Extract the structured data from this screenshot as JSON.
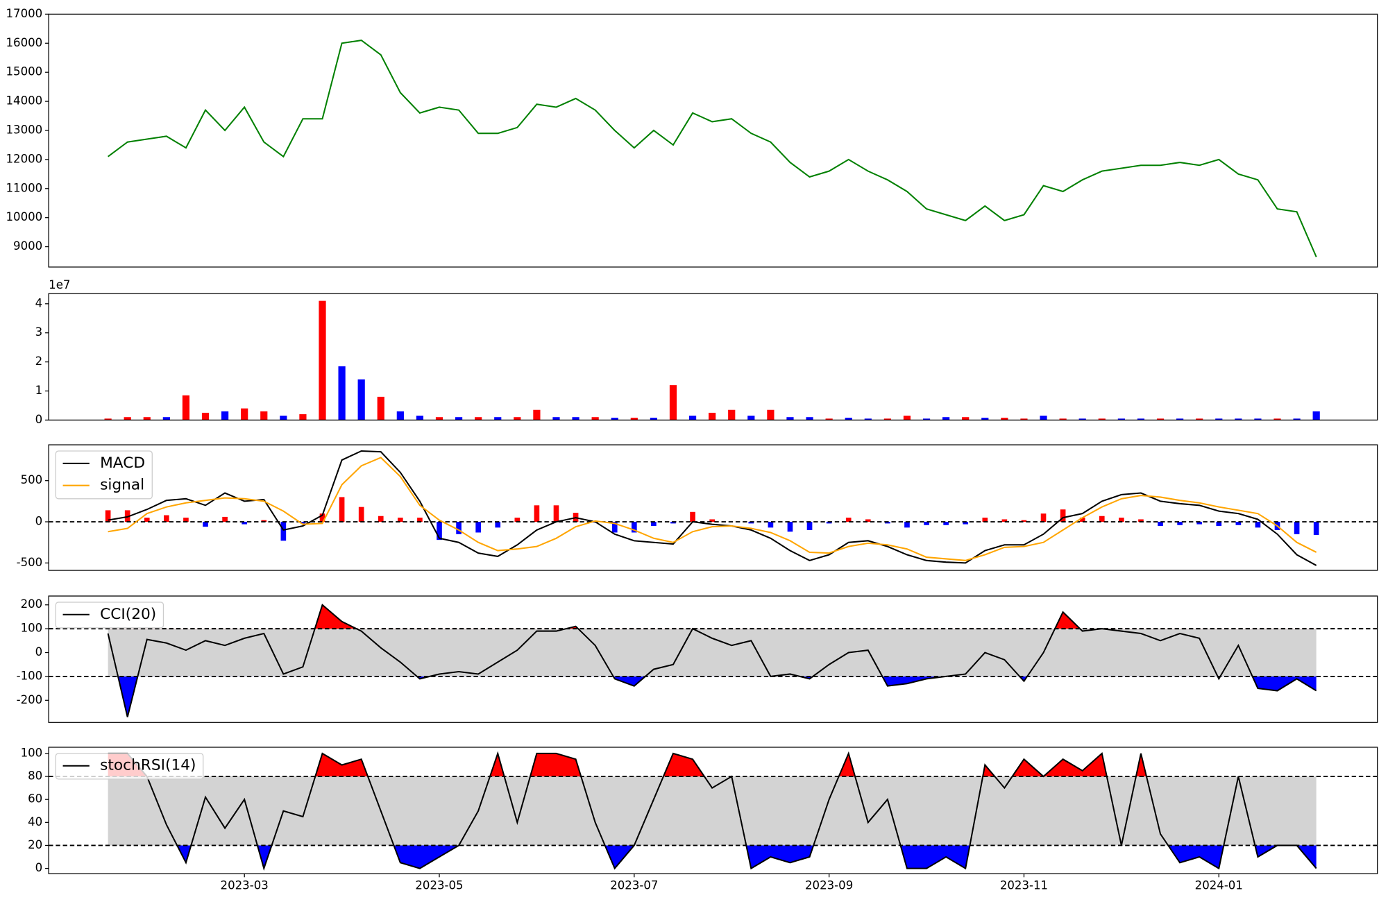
{
  "chart_data": [
    {
      "type": "line",
      "ylim": [
        8300,
        17000
      ],
      "yticks": [
        9000,
        10000,
        11000,
        12000,
        13000,
        14000,
        15000,
        16000,
        17000
      ],
      "series": [
        {
          "color": "green",
          "values": [
            12100,
            12600,
            12700,
            12800,
            12400,
            13700,
            13000,
            13800,
            12600,
            12100,
            13400,
            13400,
            16000,
            16100,
            15600,
            14300,
            13600,
            13800,
            13700,
            12900,
            12900,
            13100,
            13900,
            13800,
            14100,
            13700,
            13000,
            12400,
            13000,
            12500,
            13600,
            13300,
            13400,
            12900,
            12600,
            11900,
            11400,
            11600,
            12000,
            11600,
            11300,
            10900,
            10300,
            10100,
            9900,
            10400,
            9900,
            10100,
            11100,
            10900,
            11300,
            11600,
            11700,
            11800,
            11800,
            11900,
            11800,
            12000,
            11500,
            11300,
            10300,
            10200,
            8650
          ]
        }
      ]
    },
    {
      "type": "bar",
      "offset_label": "1e7",
      "ylim": [
        0,
        4.35
      ],
      "yticks": [
        0,
        1,
        2,
        3,
        4
      ],
      "values": [
        0.05,
        0.1,
        0.1,
        0.1,
        0.85,
        0.25,
        0.3,
        0.4,
        0.3,
        0.15,
        0.2,
        4.1,
        1.85,
        1.4,
        0.8,
        0.3,
        0.15,
        0.1,
        0.1,
        0.1,
        0.1,
        0.1,
        0.35,
        0.1,
        0.1,
        0.1,
        0.08,
        0.08,
        0.08,
        1.2,
        0.15,
        0.25,
        0.35,
        0.15,
        0.35,
        0.1,
        0.1,
        0.05,
        0.08,
        0.05,
        0.05,
        0.15,
        0.05,
        0.1,
        0.1,
        0.08,
        0.08,
        0.05,
        0.15,
        0.05,
        0.05,
        0.05,
        0.05,
        0.05,
        0.05,
        0.05,
        0.05,
        0.05,
        0.05,
        0.05,
        0.05,
        0.05,
        0.3
      ],
      "colors": [
        "red",
        "red",
        "red",
        "blue",
        "red",
        "red",
        "blue",
        "red",
        "red",
        "blue",
        "red",
        "red",
        "blue",
        "blue",
        "red",
        "blue",
        "blue",
        "red",
        "blue",
        "red",
        "blue",
        "red",
        "red",
        "blue",
        "blue",
        "red",
        "blue",
        "red",
        "blue",
        "red",
        "blue",
        "red",
        "red",
        "blue",
        "red",
        "blue",
        "blue",
        "red",
        "blue",
        "blue",
        "red",
        "red",
        "blue",
        "blue",
        "red",
        "blue",
        "red",
        "red",
        "blue",
        "red",
        "blue",
        "red",
        "blue",
        "blue",
        "red",
        "blue",
        "red",
        "blue",
        "blue",
        "blue",
        "red",
        "blue",
        "blue"
      ]
    },
    {
      "type": "line",
      "ylim": [
        -590,
        935
      ],
      "yticks": [
        -500,
        0,
        500
      ],
      "legend": "upper left",
      "hlines": [
        0
      ],
      "series": [
        {
          "name": "MACD",
          "color": "black",
          "values": [
            20,
            60,
            150,
            260,
            280,
            200,
            350,
            250,
            270,
            -100,
            -50,
            80,
            750,
            860,
            850,
            600,
            250,
            -200,
            -250,
            -380,
            -420,
            -280,
            -100,
            0,
            50,
            0,
            -150,
            -230,
            -250,
            -270,
            0,
            -30,
            -50,
            -100,
            -200,
            -350,
            -470,
            -400,
            -250,
            -230,
            -300,
            -400,
            -470,
            -490,
            -500,
            -350,
            -280,
            -280,
            -150,
            50,
            100,
            250,
            330,
            350,
            250,
            220,
            200,
            130,
            100,
            30,
            -150,
            -400,
            -530
          ]
        },
        {
          "name": "signal",
          "color": "orange",
          "values": [
            -120,
            -80,
            100,
            180,
            230,
            260,
            290,
            280,
            250,
            130,
            -30,
            -20,
            450,
            680,
            780,
            550,
            200,
            20,
            -100,
            -250,
            -350,
            -330,
            -300,
            -200,
            -60,
            10,
            -20,
            -100,
            -200,
            -250,
            -120,
            -60,
            -50,
            -80,
            -130,
            -230,
            -370,
            -380,
            -300,
            -260,
            -280,
            -330,
            -430,
            -450,
            -470,
            -400,
            -310,
            -300,
            -250,
            -100,
            50,
            180,
            280,
            320,
            300,
            260,
            230,
            180,
            140,
            100,
            -50,
            -250,
            -370
          ]
        }
      ],
      "histogram": {
        "positive_color": "red",
        "negative_color": "blue",
        "values": [
          140,
          140,
          50,
          80,
          50,
          -60,
          60,
          -30,
          20,
          -230,
          -20,
          100,
          300,
          180,
          70,
          50,
          50,
          -220,
          -150,
          -130,
          -70,
          50,
          200,
          200,
          110,
          -10,
          -130,
          -130,
          -50,
          -20,
          120,
          30,
          0,
          -20,
          -70,
          -120,
          -100,
          -20,
          50,
          30,
          -20,
          -70,
          -40,
          -40,
          -30,
          50,
          30,
          20,
          100,
          150,
          50,
          70,
          50,
          30,
          -50,
          -40,
          -30,
          -50,
          -40,
          -70,
          -100,
          -150,
          -160
        ]
      }
    },
    {
      "type": "line",
      "ylim": [
        -293,
        237
      ],
      "yticks": [
        -200,
        -100,
        0,
        100,
        200
      ],
      "legend": "upper left",
      "band": {
        "lower": -100,
        "upper": 100,
        "color": "lightgray",
        "above_color": "red",
        "below_color": "blue"
      },
      "series": [
        {
          "name": "CCI(20)",
          "color": "black",
          "values": [
            80,
            -270,
            55,
            40,
            10,
            50,
            30,
            60,
            80,
            -90,
            -60,
            200,
            130,
            90,
            20,
            -40,
            -110,
            -90,
            -80,
            -90,
            -40,
            10,
            90,
            90,
            110,
            30,
            -110,
            -140,
            -70,
            -50,
            100,
            60,
            30,
            50,
            -100,
            -90,
            -110,
            -50,
            0,
            10,
            -140,
            -130,
            -110,
            -100,
            -90,
            0,
            -30,
            -120,
            0,
            170,
            90,
            100,
            90,
            80,
            50,
            80,
            60,
            -110,
            30,
            -150,
            -160,
            -110,
            -160
          ]
        }
      ]
    },
    {
      "type": "line",
      "ylim": [
        -4.6,
        105.4
      ],
      "yticks": [
        0,
        20,
        40,
        60,
        80,
        100
      ],
      "legend": "upper left",
      "band": {
        "lower": 20,
        "upper": 80,
        "color": "lightgray",
        "above_color": "red",
        "below_color": "blue"
      },
      "categories": [
        null,
        null,
        null,
        null,
        null,
        null,
        null,
        "2023-03",
        null,
        null,
        null,
        null,
        null,
        null,
        null,
        null,
        null,
        "2023-05",
        null,
        null,
        null,
        null,
        null,
        null,
        null,
        null,
        null,
        "2023-07",
        null,
        null,
        null,
        null,
        null,
        null,
        null,
        null,
        null,
        "2023-09",
        null,
        null,
        null,
        null,
        null,
        null,
        null,
        null,
        null,
        "2023-11",
        null,
        null,
        null,
        null,
        null,
        null,
        null,
        null,
        null,
        "2024-01",
        null,
        null,
        null,
        null,
        null
      ],
      "series": [
        {
          "name": "stochRSI(14)",
          "color": "black",
          "values": [
            100,
            100,
            80,
            38,
            5,
            62,
            35,
            60,
            0,
            50,
            45,
            100,
            90,
            95,
            50,
            5,
            0,
            10,
            20,
            50,
            100,
            40,
            100,
            100,
            95,
            40,
            0,
            20,
            60,
            100,
            95,
            70,
            80,
            0,
            10,
            5,
            10,
            60,
            100,
            40,
            60,
            0,
            0,
            10,
            0,
            90,
            70,
            95,
            80,
            95,
            85,
            100,
            20,
            100,
            30,
            5,
            10,
            0,
            80,
            10,
            20,
            20,
            0
          ]
        }
      ]
    }
  ]
}
